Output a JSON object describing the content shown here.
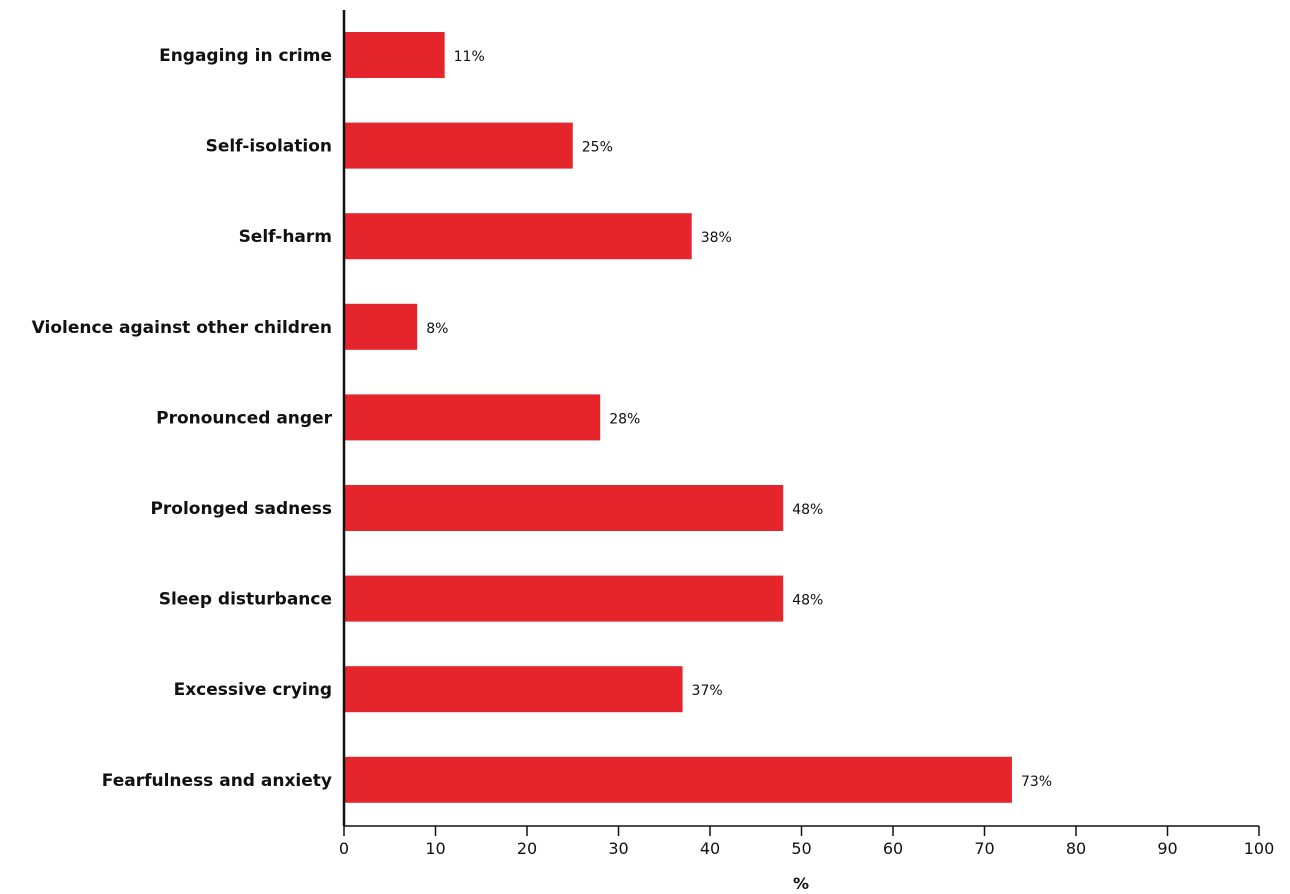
{
  "chart_data": {
    "type": "bar",
    "orientation": "horizontal",
    "title": "",
    "xlabel": "%",
    "ylabel": "",
    "xlim": [
      0,
      100
    ],
    "x_ticks": [
      0,
      10,
      20,
      30,
      40,
      50,
      60,
      70,
      80,
      90,
      100
    ],
    "grid": false,
    "bar_color": "#e4262c",
    "categories": [
      "Engaging in crime",
      "Self-isolation",
      "Self-harm",
      "Violence against other children",
      "Pronounced anger",
      "Prolonged sadness",
      "Sleep disturbance",
      "Excessive crying",
      "Fearfulness and anxiety"
    ],
    "values": [
      11,
      25,
      38,
      8,
      28,
      48,
      48,
      37,
      73
    ],
    "value_labels": [
      "11%",
      "25%",
      "38%",
      "8%",
      "28%",
      "48%",
      "48%",
      "37%",
      "73%"
    ]
  }
}
